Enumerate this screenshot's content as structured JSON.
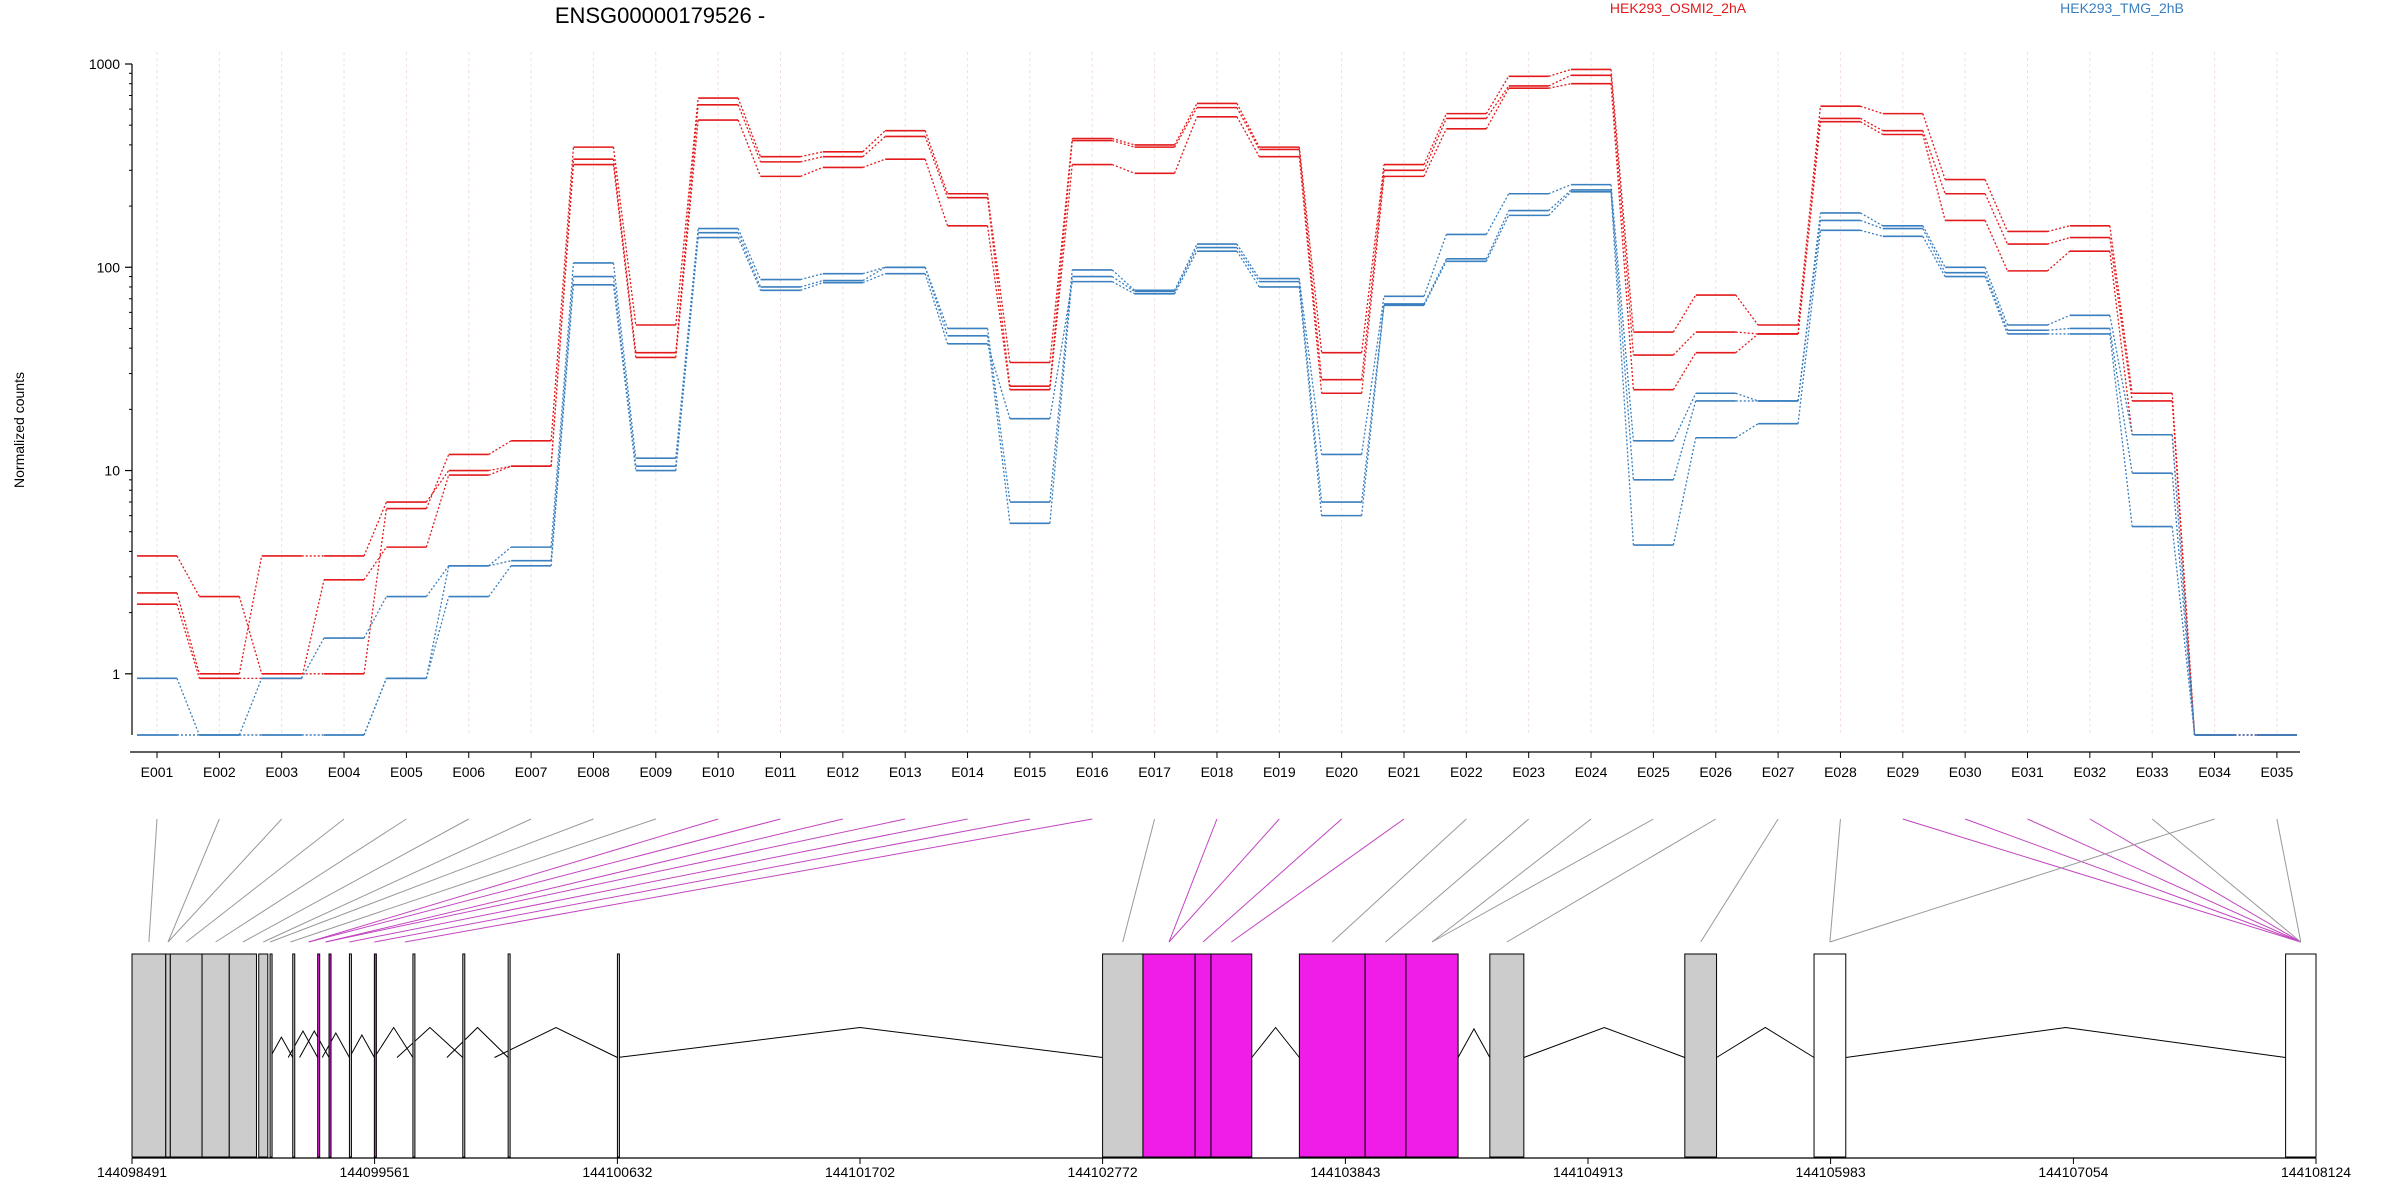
{
  "chart_data": {
    "type": "line",
    "title": "ENSG00000179526 -",
    "ylabel": "Normalized counts",
    "yscale": "log",
    "ylim": [
      0.5,
      1000
    ],
    "grid": "vertical",
    "legend_position": "top-right",
    "y_ticks": [
      "1",
      "10",
      "100",
      "1000"
    ],
    "y_tick_values": [
      1,
      10,
      100,
      1000
    ],
    "categories": [
      "E001",
      "E002",
      "E003",
      "E004",
      "E005",
      "E006",
      "E007",
      "E008",
      "E009",
      "E010",
      "E011",
      "E012",
      "E013",
      "E014",
      "E015",
      "E016",
      "E017",
      "E018",
      "E019",
      "E020",
      "E021",
      "E022",
      "E023",
      "E024",
      "E025",
      "E026",
      "E027",
      "E028",
      "E029",
      "E030",
      "E031",
      "E032",
      "E033",
      "E034",
      "E035"
    ],
    "series": [
      {
        "name": "HEK293_OSMI2_2hA",
        "group": "OSMI2",
        "color": "#e31a1c",
        "values": [
          3.8,
          2.4,
          1.0,
          1.0,
          6.5,
          12,
          14,
          390,
          52,
          680,
          350,
          370,
          470,
          230,
          34,
          430,
          400,
          640,
          390,
          38,
          320,
          570,
          870,
          940,
          48,
          73,
          52,
          620,
          570,
          270,
          150,
          160,
          24,
          0.5,
          0.5
        ]
      },
      {
        "name": "",
        "group": "OSMI2",
        "color": "#e31a1c",
        "values": [
          2.5,
          1.0,
          3.8,
          3.8,
          7.0,
          10,
          10.5,
          340,
          38,
          630,
          330,
          350,
          440,
          220,
          26,
          420,
          390,
          610,
          380,
          28,
          300,
          540,
          780,
          880,
          37,
          48,
          47,
          540,
          470,
          230,
          130,
          140,
          22,
          0.5,
          0.5
        ]
      },
      {
        "name": "",
        "group": "OSMI2",
        "color": "#e31a1c",
        "values": [
          2.2,
          0.95,
          0.95,
          2.9,
          4.2,
          9.5,
          10.5,
          320,
          36,
          530,
          280,
          310,
          340,
          160,
          25,
          320,
          290,
          550,
          350,
          24,
          280,
          480,
          760,
          800,
          25,
          38,
          47,
          520,
          450,
          170,
          96,
          120,
          15,
          0.5,
          0.5
        ]
      },
      {
        "name": "HEK293_TMG_2hB",
        "group": "TMG",
        "color": "#3a7fbf",
        "values": [
          0.95,
          0.5,
          0.95,
          1.5,
          2.4,
          3.4,
          4.2,
          105,
          11.5,
          155,
          87,
          93,
          100,
          50,
          7.0,
          97,
          77,
          130,
          88,
          12,
          72,
          145,
          230,
          255,
          14,
          24,
          22,
          185,
          160,
          100,
          52,
          58,
          15,
          0.5,
          0.5
        ]
      },
      {
        "name": "",
        "group": "TMG",
        "color": "#3a7fbf",
        "values": [
          0.5,
          0.5,
          0.5,
          0.5,
          0.95,
          3.4,
          3.6,
          90,
          10.5,
          148,
          80,
          86,
          100,
          46,
          5.5,
          90,
          76,
          125,
          85,
          7.0,
          66,
          110,
          190,
          240,
          9.0,
          22,
          22,
          170,
          155,
          94,
          49,
          50,
          9.7,
          0.5,
          0.5
        ]
      },
      {
        "name": "",
        "group": "TMG",
        "color": "#3a7fbf",
        "values": [
          0.5,
          0.5,
          0.5,
          0.5,
          0.95,
          2.4,
          3.4,
          82,
          10.0,
          140,
          77,
          84,
          93,
          42,
          18,
          85,
          74,
          120,
          80,
          6.0,
          65,
          107,
          180,
          235,
          4.3,
          14.5,
          17,
          152,
          142,
          90,
          47,
          47,
          5.3,
          0.5,
          0.5
        ]
      }
    ],
    "legend": [
      {
        "label": "HEK293_OSMI2_2hA",
        "color": "#e31a1c"
      },
      {
        "label": "HEK293_TMG_2hB",
        "color": "#3a7fbf"
      }
    ]
  },
  "gene_model": {
    "coordinate_labels": [
      "144098491",
      "144099561",
      "144100632",
      "144101702",
      "144102772",
      "144103843",
      "144104913",
      "144105983",
      "144107054",
      "144108124"
    ],
    "coordinate_values": [
      144098491,
      144099561,
      144100632,
      144101702,
      144102772,
      144103843,
      144104913,
      144105983,
      144107054,
      144108124
    ],
    "exon_starts": [
      144098491,
      144098640,
      144098660,
      144098800,
      144098920,
      144099050,
      144099100,
      144099200,
      144099310,
      144099360,
      144099450,
      144099560,
      144099730,
      144099950,
      144100150,
      144100632,
      144102772,
      144102950,
      144103180,
      144103250,
      144103640,
      144103930,
      144104110,
      144104480,
      144105340,
      144105910,
      144107990
    ],
    "exon_ends": [
      144098640,
      144098660,
      144098800,
      144098920,
      144099040,
      144099090,
      144099100,
      144099180,
      144099230,
      144099330,
      144099450,
      144099560,
      144099660,
      144099880,
      144100090,
      144100632,
      144102950,
      144103180,
      144103250,
      144103430,
      144103930,
      144104110,
      144104340,
      144104630,
      144105480,
      144106050,
      144108124
    ],
    "exon_status": [
      "none",
      "none",
      "none",
      "none",
      "none",
      "none",
      "none",
      "none",
      "none",
      "none",
      "none",
      "none",
      "none",
      "none",
      "none",
      "none",
      "none",
      "none",
      "none",
      "none",
      "none",
      "none",
      "none",
      "none",
      "none",
      "none",
      "none"
    ],
    "colors": {
      "exon_default": "#cccccc",
      "exon_highlight": "#f01de8",
      "exon_untranslated": "#ffffff",
      "connector_default": "#999999",
      "connector_highlight": "#c245c0"
    }
  }
}
